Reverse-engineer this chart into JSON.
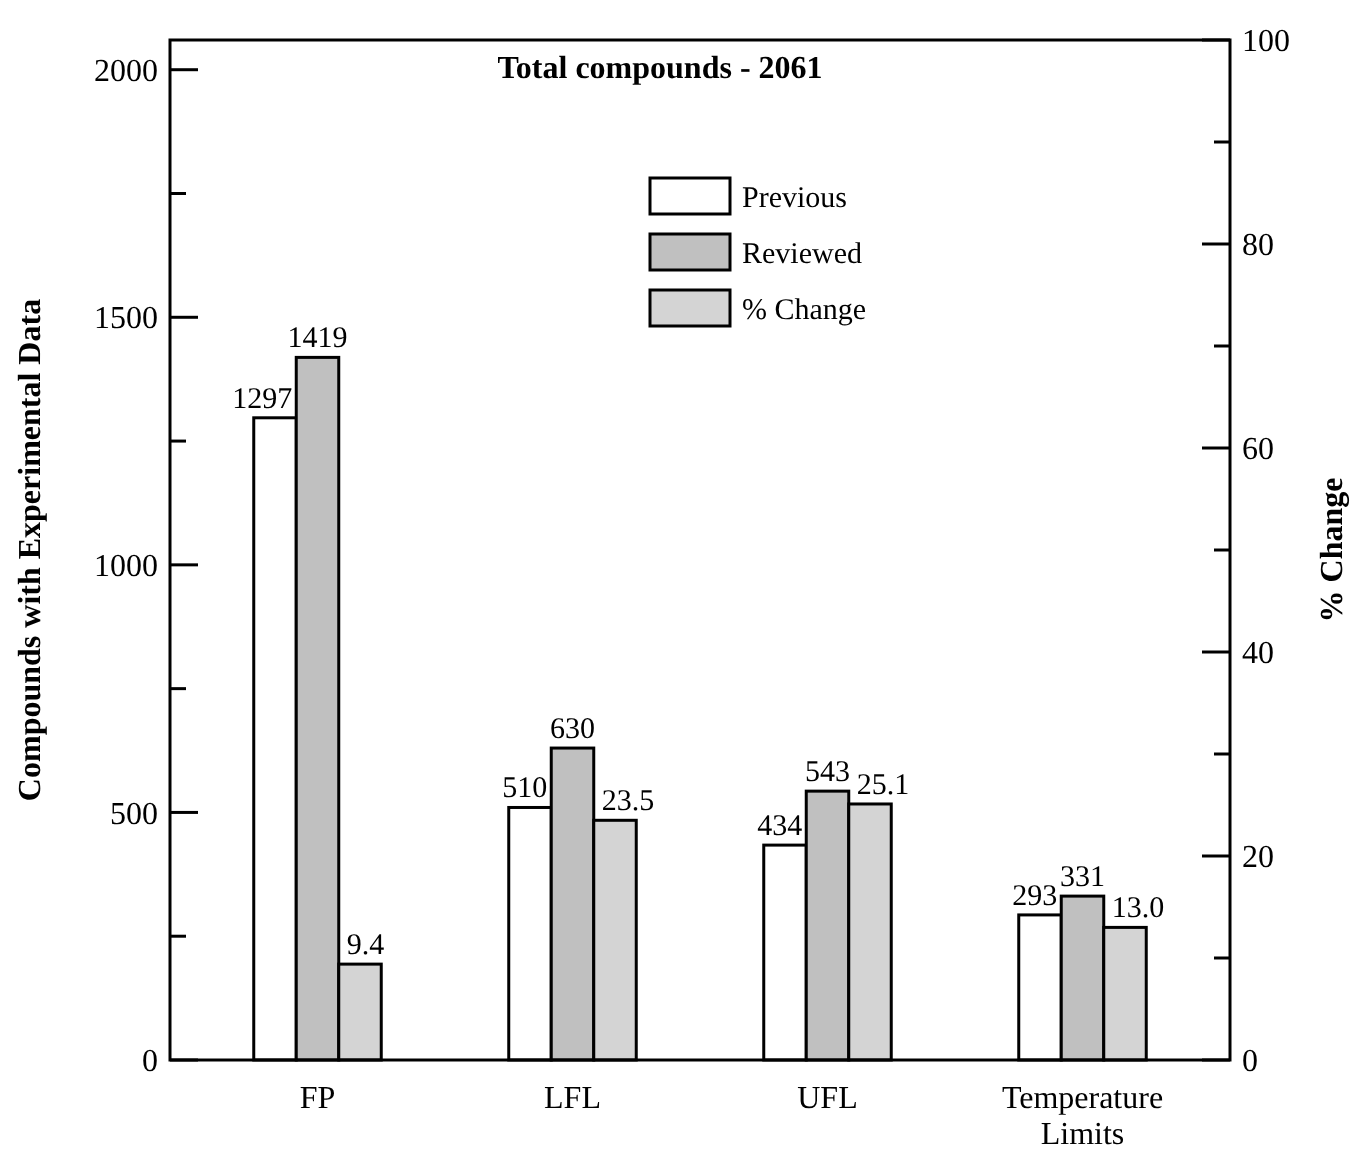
{
  "chart_data": {
    "type": "bar",
    "title": "Total compounds - 2061",
    "ylabel": "Compounds with Experimental Data",
    "y2label": "% Change",
    "categories": [
      "FP",
      "LFL",
      "UFL",
      "Temperature Limits"
    ],
    "series": [
      {
        "name": "Previous",
        "color": "#ffffff",
        "values": [
          1297,
          510,
          434,
          293
        ]
      },
      {
        "name": "Reviewed",
        "color": "#c0c0c0",
        "values": [
          1419,
          630,
          543,
          331
        ]
      },
      {
        "name": "% Change",
        "color": "#d4d4d4",
        "axis": "y2",
        "values": [
          9.4,
          23.5,
          25.1,
          13.0
        ],
        "value_labels": [
          "9.4",
          "23.5",
          "25.1",
          "13.0"
        ]
      }
    ],
    "ylim": [
      0,
      2060
    ],
    "yticks": [
      0,
      {
        "value": 250,
        "label": null
      },
      500,
      {
        "value": 750,
        "label": null
      },
      1000,
      {
        "value": 1250,
        "label": null
      },
      1500,
      {
        "value": 1750,
        "label": null
      },
      2000
    ],
    "y2lim": [
      0,
      100
    ],
    "y2ticks": [
      0,
      {
        "value": 10,
        "label": null
      },
      20,
      {
        "value": 30,
        "label": null
      },
      40,
      {
        "value": 50,
        "label": null
      },
      60,
      {
        "value": 70,
        "label": null
      },
      80,
      {
        "value": 90,
        "label": null
      },
      100
    ],
    "data_labels": true,
    "grid": false,
    "legend": "top"
  }
}
